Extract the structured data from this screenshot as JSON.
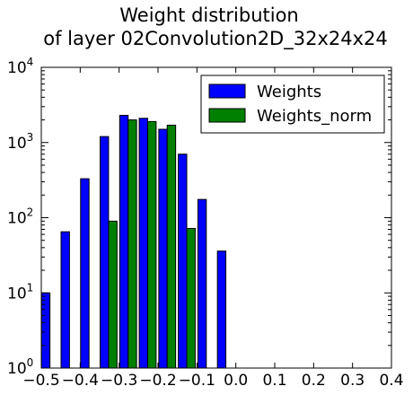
{
  "chart_data": {
    "type": "bar",
    "title_line1": "Weight distribution",
    "title_line2": "of layer 02Convolution2D_32x24x24",
    "xlabel": "",
    "ylabel": "",
    "y_scale": "log",
    "xlim": [
      -0.5,
      0.4
    ],
    "ylim": [
      1,
      10000
    ],
    "x_ticks": [
      {
        "value": -0.5,
        "label": "−0.5"
      },
      {
        "value": -0.4,
        "label": "−0.4"
      },
      {
        "value": -0.3,
        "label": "−0.3"
      },
      {
        "value": -0.2,
        "label": "−0.2"
      },
      {
        "value": -0.1,
        "label": "−0.1"
      },
      {
        "value": 0.0,
        "label": "0.0"
      },
      {
        "value": 0.1,
        "label": "0.1"
      },
      {
        "value": 0.2,
        "label": "0.2"
      },
      {
        "value": 0.3,
        "label": "0.3"
      },
      {
        "value": 0.4,
        "label": "0.4"
      }
    ],
    "y_ticks": [
      {
        "value": 1,
        "base": "10",
        "exp": "0"
      },
      {
        "value": 10,
        "base": "10",
        "exp": "1"
      },
      {
        "value": 100,
        "base": "10",
        "exp": "2"
      },
      {
        "value": 1000,
        "base": "10",
        "exp": "3"
      },
      {
        "value": 10000,
        "base": "10",
        "exp": "4"
      }
    ],
    "legend_position": "top-right",
    "grid": false,
    "series": [
      {
        "name": "Weights",
        "color": "#0000ff",
        "bars": [
          {
            "x0": -0.4995,
            "x1": -0.4778,
            "value": 10
          },
          {
            "x0": -0.4492,
            "x1": -0.4276,
            "value": 65
          },
          {
            "x0": -0.399,
            "x1": -0.3773,
            "value": 330
          },
          {
            "x0": -0.3488,
            "x1": -0.3271,
            "value": 1200
          },
          {
            "x0": -0.2985,
            "x1": -0.2768,
            "value": 2300
          },
          {
            "x0": -0.2483,
            "x1": -0.2266,
            "value": 2100
          },
          {
            "x0": -0.198,
            "x1": -0.1764,
            "value": 1500
          },
          {
            "x0": -0.1478,
            "x1": -0.1261,
            "value": 700
          },
          {
            "x0": -0.0975,
            "x1": -0.0759,
            "value": 175
          },
          {
            "x0": -0.0473,
            "x1": -0.0256,
            "value": 36
          }
        ]
      },
      {
        "name": "Weights_norm",
        "color": "#008000",
        "bars": [
          {
            "x0": -0.4778,
            "x1": -0.4561,
            "value": 1
          },
          {
            "x0": -0.4276,
            "x1": -0.4059,
            "value": 1
          },
          {
            "x0": -0.3773,
            "x1": -0.3556,
            "value": 1
          },
          {
            "x0": -0.3271,
            "x1": -0.3054,
            "value": 90
          },
          {
            "x0": -0.2768,
            "x1": -0.2551,
            "value": 2000
          },
          {
            "x0": -0.2266,
            "x1": -0.2049,
            "value": 1900
          },
          {
            "x0": -0.1764,
            "x1": -0.1547,
            "value": 1700
          },
          {
            "x0": -0.1261,
            "x1": -0.1044,
            "value": 72
          },
          {
            "x0": -0.0759,
            "x1": -0.0542,
            "value": 1
          },
          {
            "x0": -0.0256,
            "x1": -0.0039,
            "value": 1
          }
        ]
      }
    ]
  }
}
